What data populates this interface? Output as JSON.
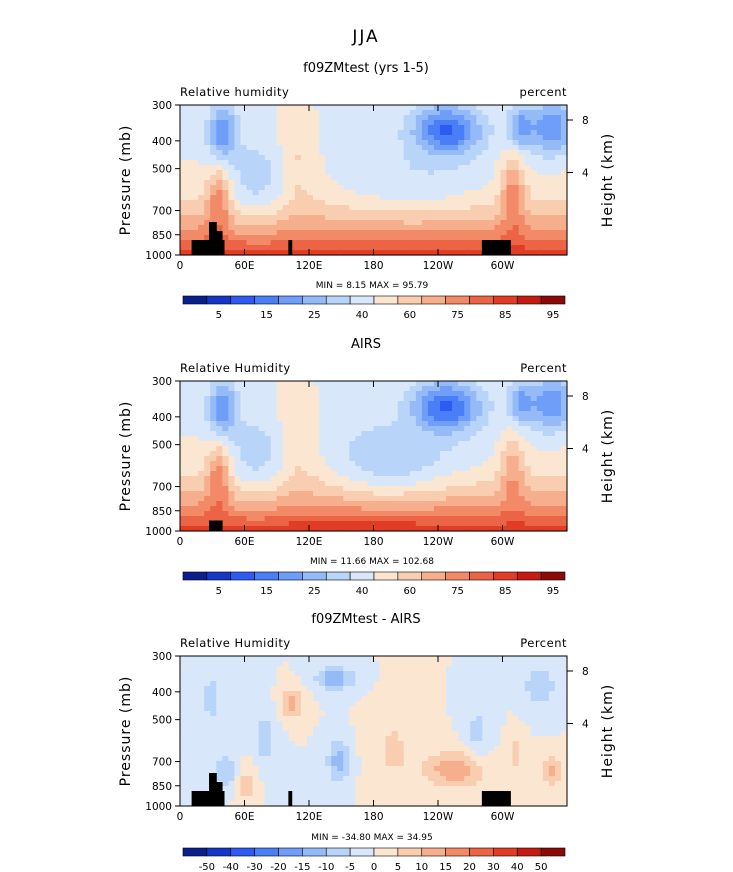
{
  "figure": {
    "title": "JJA"
  },
  "chart_data": [
    {
      "type": "heatmap",
      "title": "f09ZMtest (yrs 1-5)",
      "left_label": "Relative humidity",
      "right_label": "percent",
      "ylabel": "Pressure (mb)",
      "ylabel_right": "Height (km)",
      "x_ticks": [
        "0",
        "60E",
        "120E",
        "180",
        "120W",
        "60W"
      ],
      "y_ticks": [
        "300",
        "400",
        "500",
        "700",
        "850",
        "1000"
      ],
      "y_right_ticks": [
        "8",
        "4"
      ],
      "ylim": [
        1000,
        300
      ],
      "min_text": "MIN =   8.15   MAX =   95.79",
      "colorbar_labels": [
        "5",
        "15",
        "25",
        "40",
        "60",
        "75",
        "85",
        "95"
      ],
      "colors": [
        "#0a1e8c",
        "#1437c8",
        "#2d5af0",
        "#4a7ef6",
        "#6e9ef8",
        "#94bbf8",
        "#b8d4f8",
        "#d8e8fa",
        "#fbe6d2",
        "#f9cdb0",
        "#f6ae8c",
        "#f28a68",
        "#ec6446",
        "#e13c26",
        "#c41c12",
        "#8a0a08"
      ]
    },
    {
      "type": "heatmap",
      "title": "AIRS",
      "left_label": "Relative Humidity",
      "right_label": "Percent",
      "ylabel": "Pressure (mb)",
      "ylabel_right": "Height (km)",
      "x_ticks": [
        "0",
        "60E",
        "120E",
        "180",
        "120W",
        "60W"
      ],
      "y_ticks": [
        "300",
        "400",
        "500",
        "700",
        "850",
        "1000"
      ],
      "y_right_ticks": [
        "8",
        "4"
      ],
      "ylim": [
        1000,
        300
      ],
      "min_text": "MIN =   11.66   MAX =   102.68",
      "colorbar_labels": [
        "5",
        "15",
        "25",
        "40",
        "60",
        "75",
        "85",
        "95"
      ],
      "colors": [
        "#0a1e8c",
        "#1437c8",
        "#2d5af0",
        "#4a7ef6",
        "#6e9ef8",
        "#94bbf8",
        "#b8d4f8",
        "#d8e8fa",
        "#fbe6d2",
        "#f9cdb0",
        "#f6ae8c",
        "#f28a68",
        "#ec6446",
        "#e13c26",
        "#c41c12",
        "#8a0a08"
      ]
    },
    {
      "type": "heatmap",
      "title": "f09ZMtest - AIRS",
      "left_label": "Relative Humidity",
      "right_label": "Percent",
      "ylabel": "Pressure (mb)",
      "ylabel_right": "Height (km)",
      "x_ticks": [
        "0",
        "60E",
        "120E",
        "180",
        "120W",
        "60W"
      ],
      "y_ticks": [
        "300",
        "400",
        "500",
        "700",
        "850",
        "1000"
      ],
      "y_right_ticks": [
        "8",
        "4"
      ],
      "ylim": [
        1000,
        300
      ],
      "min_text": "MIN = -34.80   MAX =   34.95",
      "colorbar_labels": [
        "-50",
        "-40",
        "-30",
        "-20",
        "-15",
        "-10",
        "-5",
        "0",
        "5",
        "10",
        "15",
        "20",
        "30",
        "40",
        "50"
      ],
      "colors": [
        "#0a1e8c",
        "#1437c8",
        "#2d5af0",
        "#4a7ef6",
        "#6e9ef8",
        "#94bbf8",
        "#b8d4f8",
        "#d8e8fa",
        "#fbe6d2",
        "#f9cdb0",
        "#f6ae8c",
        "#f28a68",
        "#ec6446",
        "#e13c26",
        "#c41c12",
        "#8a0a08"
      ]
    }
  ]
}
